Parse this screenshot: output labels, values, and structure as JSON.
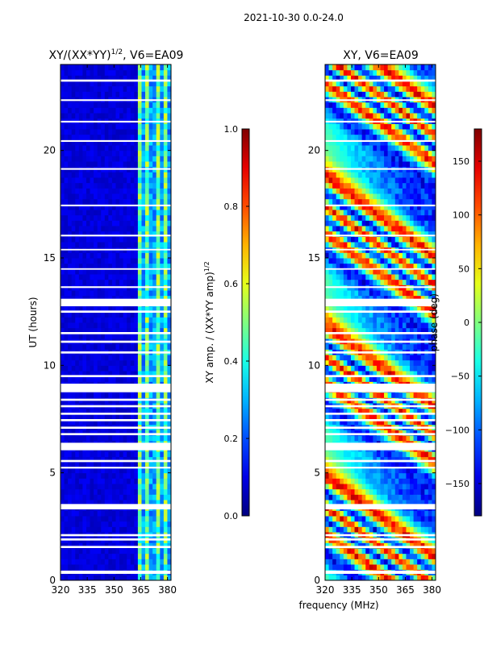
{
  "figure": {
    "suptitle": "2021-10-30 0.0-24.0",
    "xlabel": "frequency (MHz)"
  },
  "chart_data": [
    {
      "type": "heatmap",
      "title_prefix": "XY/(XX*YY)",
      "title_exp": "1/2",
      "title_suffix": ", V6=EA09",
      "xlabel": "frequency (MHz)",
      "ylabel": "UT (hours)",
      "xlim": [
        320,
        382
      ],
      "ylim": [
        0,
        24
      ],
      "xticks": [
        320,
        335,
        350,
        365,
        380
      ],
      "yticks": [
        0,
        5,
        10,
        15,
        20
      ],
      "bright_band_MHz": [
        363,
        382
      ],
      "colorbar": {
        "label_prefix": "XY amp. / (XX*YY amp)",
        "label_exp": "1/2",
        "range": [
          0.0,
          1.0
        ],
        "ticks": [
          "0.0",
          "0.2",
          "0.4",
          "0.6",
          "0.8",
          "1.0"
        ]
      }
    },
    {
      "type": "heatmap",
      "title": "XY, V6=EA09",
      "xlabel": "frequency (MHz)",
      "ylabel": "",
      "xlim": [
        320,
        382
      ],
      "ylim": [
        0,
        24
      ],
      "xticks": [
        320,
        335,
        350,
        365,
        380
      ],
      "yticks": [
        0,
        5,
        10,
        15,
        20
      ],
      "colorbar": {
        "label": "phase (deg)",
        "range": [
          -180,
          180
        ],
        "ticks": [
          "−150",
          "−100",
          "−50",
          "0",
          "50",
          "100",
          "150"
        ]
      }
    }
  ],
  "flagged_hours": [
    [
      0.3,
      0.45
    ],
    [
      1.5,
      1.6
    ],
    [
      1.85,
      1.95
    ],
    [
      2.05,
      2.15
    ],
    [
      3.3,
      3.55
    ],
    [
      5.2,
      5.28
    ],
    [
      5.5,
      5.6
    ],
    [
      6.05,
      6.4
    ],
    [
      6.75,
      6.85
    ],
    [
      7.05,
      7.15
    ],
    [
      7.4,
      7.5
    ],
    [
      7.7,
      7.8
    ],
    [
      8.05,
      8.15
    ],
    [
      8.35,
      8.45
    ],
    [
      8.75,
      9.15
    ],
    [
      9.45,
      9.55
    ],
    [
      10.55,
      10.65
    ],
    [
      11.05,
      11.15
    ],
    [
      11.45,
      11.55
    ],
    [
      12.45,
      12.55
    ],
    [
      12.75,
      13.1
    ],
    [
      13.6,
      13.68
    ],
    [
      14.45,
      14.52
    ],
    [
      15.35,
      15.42
    ],
    [
      16.0,
      16.08
    ],
    [
      17.4,
      17.48
    ],
    [
      19.1,
      19.18
    ],
    [
      20.4,
      20.48
    ],
    [
      21.3,
      21.38
    ],
    [
      22.3,
      22.38
    ],
    [
      23.2,
      23.3
    ]
  ]
}
